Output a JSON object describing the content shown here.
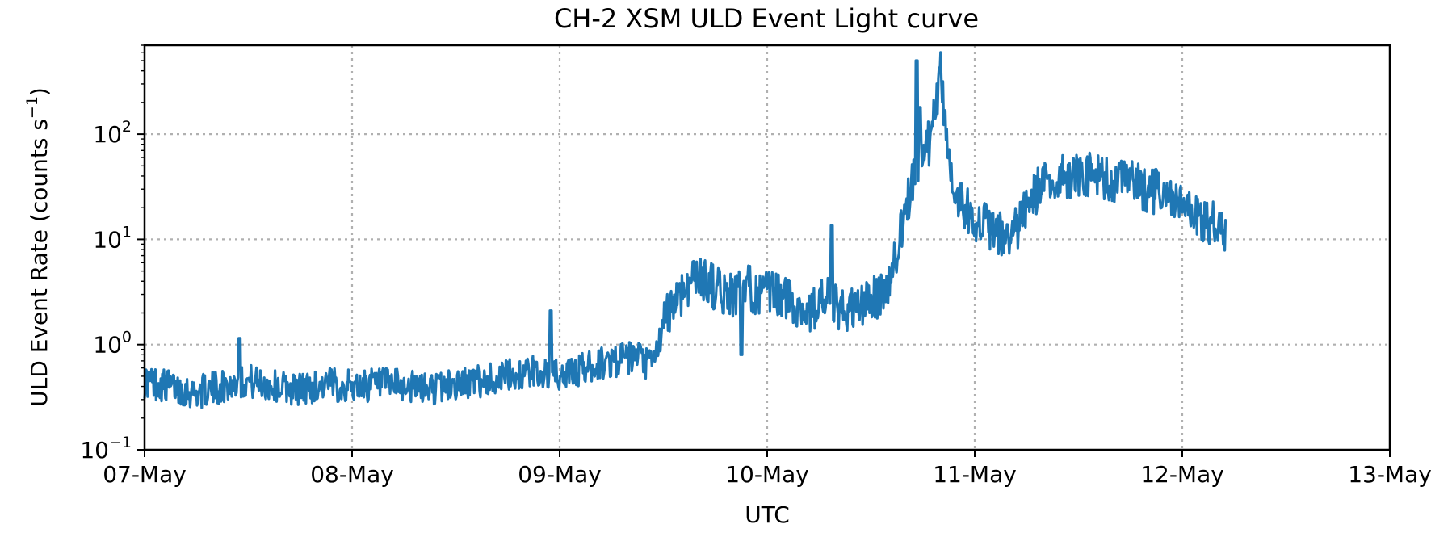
{
  "chart_data": {
    "type": "line",
    "title": "CH-2 XSM ULD Event Light curve",
    "xlabel": "UTC",
    "ylabel": "ULD Event Rate (counts s",
    "ylabel_sup": "−1",
    "ylabel_close": ")",
    "x_type": "date",
    "xlim": [
      "07-May 00:00",
      "13-May 00:00"
    ],
    "x_tick_labels": [
      "07-May",
      "08-May",
      "09-May",
      "10-May",
      "11-May",
      "12-May",
      "13-May"
    ],
    "y_scale": "log",
    "ylim": [
      0.1,
      700
    ],
    "y_tick_labels": [
      {
        "base": "10",
        "exp": "−1"
      },
      {
        "base": "10",
        "exp": "0"
      },
      {
        "base": "10",
        "exp": "1"
      },
      {
        "base": "10",
        "exp": "2"
      }
    ],
    "grid": true,
    "series": [
      {
        "color": "#1f77b4",
        "x": [
          "07-May 00:00",
          "07-May 03:00",
          "07-May 06:00",
          "07-May 09:00",
          "07-May 12:00",
          "07-May 15:00",
          "07-May 18:00",
          "07-May 21:00",
          "08-May 00:00",
          "08-May 03:00",
          "08-May 06:00",
          "08-May 09:00",
          "08-May 12:00",
          "08-May 15:00",
          "08-May 18:00",
          "08-May 21:00",
          "09-May 00:00",
          "09-May 03:00",
          "09-May 06:00",
          "09-May 09:00",
          "09-May 10:00",
          "09-May 11:00",
          "09-May 12:00",
          "09-May 13:00",
          "09-May 14:00",
          "09-May 15:00",
          "09-May 16:00",
          "09-May 17:00",
          "09-May 18:00",
          "09-May 19:00",
          "09-May 20:00",
          "09-May 21:00",
          "09-May 22:00",
          "09-May 23:00",
          "10-May 00:00",
          "10-May 01:00",
          "10-May 02:00",
          "10-May 03:00",
          "10-May 04:00",
          "10-May 05:00",
          "10-May 06:00",
          "10-May 07:00",
          "10-May 08:00",
          "10-May 09:00",
          "10-May 10:00",
          "10-May 11:00",
          "10-May 12:00",
          "10-May 13:00",
          "10-May 14:00",
          "10-May 15:00",
          "10-May 16:00",
          "10-May 17:00",
          "10-May 18:00",
          "10-May 19:00",
          "10-May 20:00",
          "10-May 21:00",
          "10-May 22:00",
          "10-May 23:00",
          "11-May 00:00",
          "11-May 01:00",
          "11-May 02:00",
          "11-May 03:00",
          "11-May 04:00",
          "11-May 05:00",
          "11-May 06:00",
          "11-May 07:00",
          "11-May 08:00",
          "11-May 09:00",
          "11-May 10:00",
          "11-May 11:00",
          "11-May 12:00",
          "11-May 13:00",
          "11-May 14:00",
          "11-May 15:00",
          "11-May 16:00",
          "11-May 17:00",
          "11-May 18:00",
          "11-May 19:00",
          "11-May 20:00",
          "11-May 21:00",
          "11-May 22:00",
          "11-May 23:00",
          "12-May 00:00",
          "12-May 01:00",
          "12-May 02:00",
          "12-May 03:00",
          "12-May 04:00",
          "12-May 05:00"
        ],
        "y": [
          0.45,
          0.4,
          0.35,
          0.4,
          0.45,
          0.4,
          0.38,
          0.42,
          0.4,
          0.42,
          0.4,
          0.38,
          0.42,
          0.45,
          0.5,
          0.55,
          0.5,
          0.6,
          0.7,
          0.75,
          0.65,
          0.7,
          1.5,
          2.5,
          3.0,
          4.0,
          4.5,
          4.0,
          3.5,
          3.0,
          3.0,
          3.2,
          3.5,
          3.0,
          3.0,
          3.0,
          2.8,
          2.5,
          2.2,
          2.0,
          2.5,
          2.8,
          2.2,
          2.0,
          2.2,
          2.4,
          2.6,
          3.0,
          3.5,
          8.0,
          18.0,
          40.0,
          70.0,
          90.0,
          400.0,
          60.0,
          25.0,
          20.0,
          16.0,
          14.0,
          12.0,
          11.0,
          10.0,
          13.0,
          20.0,
          28.0,
          32.0,
          35.0,
          38.0,
          40.0,
          42.0,
          42.0,
          40.0,
          38.0,
          35.0,
          35.0,
          35.0,
          33.0,
          30.0,
          28.0,
          25.0,
          23.0,
          20.0,
          18.0,
          16.0,
          15.0,
          14.0,
          12.0
        ]
      }
    ],
    "spikes": [
      {
        "x": "07-May 11:00",
        "y": 1.15
      },
      {
        "x": "09-May 00:10",
        "y": 0.5
      },
      {
        "x": "08-May 23:00",
        "y": 2.1
      },
      {
        "x": "10-May 07:30",
        "y": 13.5
      },
      {
        "x": "09-May 21:00",
        "y": 0.8
      },
      {
        "x": "10-May 17:15",
        "y": 500
      },
      {
        "x": "10-May 17:40",
        "y": 180
      }
    ]
  }
}
